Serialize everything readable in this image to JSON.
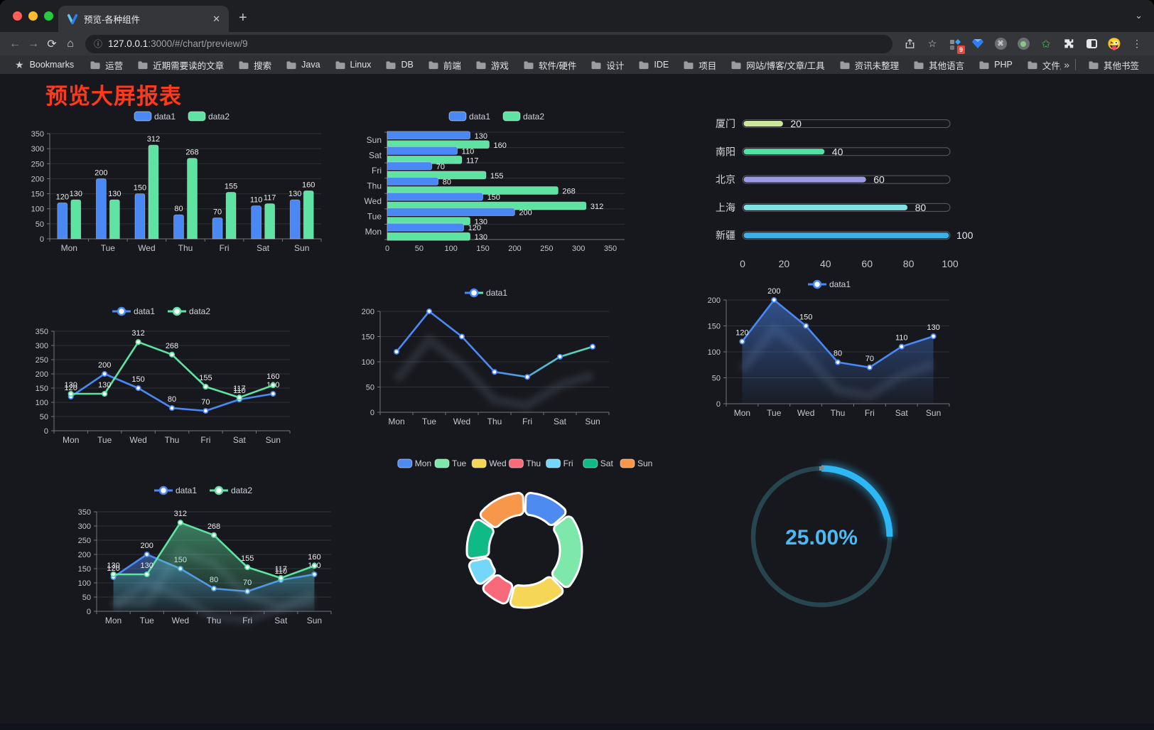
{
  "browser": {
    "tab_title": "预览-各种组件",
    "url_host": "127.0.0.1",
    "url_rest": ":3000/#/chart/preview/9",
    "bookmarks_label": "Bookmarks",
    "bookmarks": [
      "运营",
      "近期需要读的文章",
      "搜索",
      "Java",
      "Linux",
      "DB",
      "前端",
      "游戏",
      "软件/硬件",
      "设计",
      "IDE",
      "项目",
      "网站/博客/文章/工具",
      "资讯未整理",
      "其他语言",
      "PHP",
      "文件服务器"
    ],
    "bookmarks_overflow": "»",
    "other_bookmarks": "其他书签",
    "extension_badge": "9"
  },
  "page": {
    "title": "预览大屏报表",
    "title_color": "#fb3a1e",
    "background": "#17181d"
  },
  "chart_data": [
    {
      "id": "grouped-bar",
      "type": "bar",
      "legend_position": "top",
      "grid": true,
      "categories": [
        "Mon",
        "Tue",
        "Wed",
        "Thu",
        "Fri",
        "Sat",
        "Sun"
      ],
      "series": [
        {
          "name": "data1",
          "color": "#4a89f5",
          "values": [
            120,
            200,
            150,
            80,
            70,
            110,
            130
          ]
        },
        {
          "name": "data2",
          "color": "#5fe3a2",
          "values": [
            130,
            130,
            312,
            268,
            155,
            117,
            160
          ]
        }
      ],
      "ylim": [
        0,
        350
      ],
      "ytick_step": 50,
      "ytick_labels": [
        "0",
        "50",
        "100",
        "150",
        "200",
        "250",
        "300",
        "350"
      ]
    },
    {
      "id": "grouped-hbar",
      "type": "bar",
      "orientation": "horizontal",
      "legend_position": "top",
      "categories": [
        "Mon",
        "Tue",
        "Wed",
        "Thu",
        "Fri",
        "Sat",
        "Sun"
      ],
      "display_order_top_to_bottom": [
        "Sun",
        "Sat",
        "Fri",
        "Thu",
        "Wed",
        "Tue",
        "Mon"
      ],
      "series": [
        {
          "name": "data1",
          "color": "#4a89f5",
          "values": [
            120,
            200,
            150,
            80,
            70,
            110,
            130
          ]
        },
        {
          "name": "data2",
          "color": "#5fe3a2",
          "values": [
            130,
            130,
            312,
            268,
            155,
            117,
            160
          ]
        }
      ],
      "xlim": [
        0,
        350
      ],
      "xtick_step": 50,
      "xtick_labels": [
        "0",
        "50",
        "100",
        "150",
        "200",
        "250",
        "300",
        "350"
      ]
    },
    {
      "id": "city-progress",
      "type": "bar",
      "orientation": "progress",
      "categories": [
        "厦门",
        "南阳",
        "北京",
        "上海",
        "新疆"
      ],
      "values": [
        20,
        40,
        60,
        80,
        100
      ],
      "colors": [
        "#cbe79b",
        "#54dfa5",
        "#9a99e8",
        "#7fe1e1",
        "#3cb1e8"
      ],
      "xlim": [
        0,
        100
      ],
      "xtick_step": 20,
      "xtick_labels": [
        "0",
        "20",
        "40",
        "60",
        "80",
        "100"
      ]
    },
    {
      "id": "dual-line",
      "type": "line",
      "legend_position": "top",
      "show_labels": true,
      "categories": [
        "Mon",
        "Tue",
        "Wed",
        "Thu",
        "Fri",
        "Sat",
        "Sun"
      ],
      "series": [
        {
          "name": "data1",
          "color": "#4a89f5",
          "values": [
            120,
            200,
            150,
            80,
            70,
            110,
            130
          ]
        },
        {
          "name": "data2",
          "color": "#5fe3a2",
          "values": [
            130,
            130,
            312,
            268,
            155,
            117,
            160
          ]
        }
      ],
      "ylim": [
        0,
        350
      ],
      "ytick_step": 50,
      "ytick_labels": [
        "0",
        "50",
        "100",
        "150",
        "200",
        "250",
        "300",
        "350"
      ]
    },
    {
      "id": "gradient-line",
      "type": "line",
      "legend_position": "top",
      "show_labels": false,
      "categories": [
        "Mon",
        "Tue",
        "Wed",
        "Thu",
        "Fri",
        "Sat",
        "Sun"
      ],
      "series": [
        {
          "name": "data1",
          "color": "#4a89f5",
          "color_end": "#5fe3a2",
          "values": [
            120,
            200,
            150,
            80,
            70,
            110,
            130
          ]
        }
      ],
      "ylim": [
        0,
        200
      ],
      "ytick_step": 50,
      "ytick_labels": [
        "0",
        "50",
        "100",
        "150",
        "200"
      ]
    },
    {
      "id": "area-line",
      "type": "area",
      "legend_position": "top",
      "show_labels": true,
      "categories": [
        "Mon",
        "Tue",
        "Wed",
        "Thu",
        "Fri",
        "Sat",
        "Sun"
      ],
      "series": [
        {
          "name": "data1",
          "color": "#4a89f5",
          "values": [
            120,
            200,
            150,
            80,
            70,
            110,
            130
          ],
          "area": true
        }
      ],
      "ylim": [
        0,
        200
      ],
      "ytick_step": 50,
      "ytick_labels": [
        "0",
        "50",
        "100",
        "150",
        "200"
      ]
    },
    {
      "id": "dual-area-line",
      "type": "area",
      "legend_position": "top",
      "show_labels": true,
      "categories": [
        "Mon",
        "Tue",
        "Wed",
        "Thu",
        "Fri",
        "Sat",
        "Sun"
      ],
      "series": [
        {
          "name": "data1",
          "color": "#4a89f5",
          "values": [
            120,
            200,
            150,
            80,
            70,
            110,
            130
          ],
          "area": true
        },
        {
          "name": "data2",
          "color": "#5fe3a2",
          "values": [
            130,
            130,
            312,
            268,
            155,
            117,
            160
          ],
          "area": true
        }
      ],
      "ylim": [
        0,
        350
      ],
      "ytick_step": 50,
      "ytick_labels": [
        "0",
        "50",
        "100",
        "150",
        "200",
        "250",
        "300",
        "350"
      ]
    },
    {
      "id": "week-donut",
      "type": "pie",
      "legend_position": "top",
      "labels": [
        "Mon",
        "Tue",
        "Wed",
        "Thu",
        "Fri",
        "Sat",
        "Sun"
      ],
      "values": [
        120,
        200,
        150,
        80,
        70,
        110,
        130
      ],
      "colors": [
        "#4e8bf0",
        "#7de8a9",
        "#f5d657",
        "#f8697a",
        "#74d7f7",
        "#10ba86",
        "#f7974b"
      ],
      "inner_radius_ratio": 0.61
    },
    {
      "id": "percent-gauge",
      "type": "gauge",
      "value": 25,
      "max": 100,
      "label": "25.00%",
      "color": "#2db7f5",
      "track_color": "#27454f",
      "text_color": "#4cb9f3"
    }
  ]
}
